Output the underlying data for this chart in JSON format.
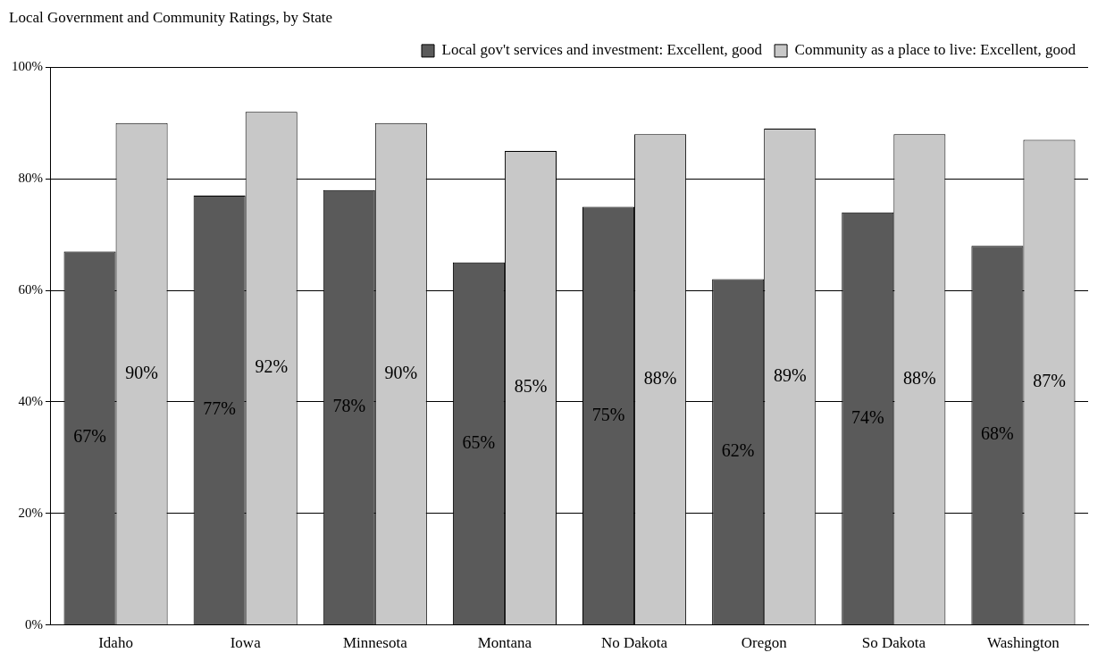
{
  "chart_data": {
    "type": "bar",
    "title": "Local Government and Community Ratings, by State",
    "categories": [
      "Idaho",
      "Iowa",
      "Minnesota",
      "Montana",
      "No Dakota",
      "Oregon",
      "So Dakota",
      "Washington"
    ],
    "series": [
      {
        "name": "Local gov't services and investment: Excellent, good",
        "color": "#5a5a5a",
        "values": [
          67,
          77,
          78,
          65,
          75,
          62,
          74,
          68
        ],
        "value_labels": [
          "67%",
          "77%",
          "78%",
          "65%",
          "75%",
          "62%",
          "74%",
          "68%"
        ]
      },
      {
        "name": "Community as a place to live: Excellent, good",
        "color": "#c8c8c8",
        "values": [
          90,
          92,
          90,
          85,
          88,
          89,
          88,
          87
        ],
        "value_labels": [
          "90%",
          "92%",
          "90%",
          "85%",
          "88%",
          "89%",
          "88%",
          "87%"
        ]
      }
    ],
    "ylim": [
      0,
      100
    ],
    "yticks": [
      {
        "value": 0,
        "label": "0%"
      },
      {
        "value": 20,
        "label": "20%"
      },
      {
        "value": 40,
        "label": "40%"
      },
      {
        "value": 60,
        "label": "60%"
      },
      {
        "value": 80,
        "label": "80%"
      },
      {
        "value": 100,
        "label": "100%"
      }
    ],
    "grid": "y",
    "legend": "top right"
  }
}
